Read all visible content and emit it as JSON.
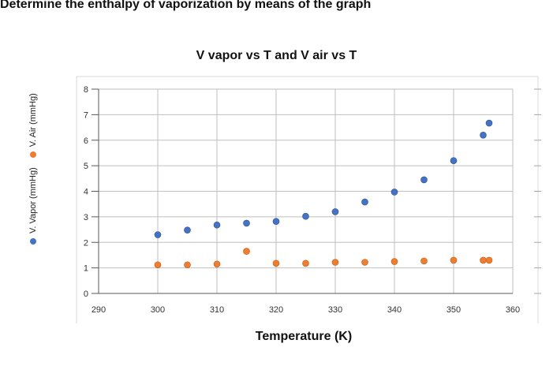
{
  "question": "Determine the enthalpy of vaporization by means of the graph",
  "chart_data": {
    "type": "scatter",
    "title": "V vapor vs T and V air vs T",
    "xlabel": "Temperature (K)",
    "ylabel": "",
    "xlim": [
      290,
      360
    ],
    "ylim": [
      0,
      8
    ],
    "xticks": [
      "290",
      "300",
      "310",
      "320",
      "330",
      "340",
      "350",
      "360"
    ],
    "yticks": [
      "0",
      "1",
      "2",
      "3",
      "4",
      "5",
      "6",
      "7",
      "8"
    ],
    "grid": true,
    "legend_position": "left-vertical",
    "series": [
      {
        "name": "V. Vapor (mmHg)",
        "color": "#4472C4",
        "x": [
          300,
          305,
          310,
          315,
          320,
          325,
          330,
          335,
          340,
          345,
          350,
          355,
          356
        ],
        "y": [
          2.3,
          2.48,
          2.68,
          2.75,
          2.82,
          3.02,
          3.2,
          3.58,
          3.97,
          4.45,
          5.2,
          6.2,
          6.67
        ]
      },
      {
        "name": "V. Air   (mmHg)",
        "color": "#ED7D31",
        "x": [
          300,
          305,
          310,
          315,
          320,
          325,
          330,
          335,
          340,
          345,
          350,
          355,
          356
        ],
        "y": [
          1.12,
          1.12,
          1.15,
          1.65,
          1.18,
          1.18,
          1.22,
          1.22,
          1.25,
          1.27,
          1.3,
          1.3,
          1.3
        ]
      }
    ]
  }
}
